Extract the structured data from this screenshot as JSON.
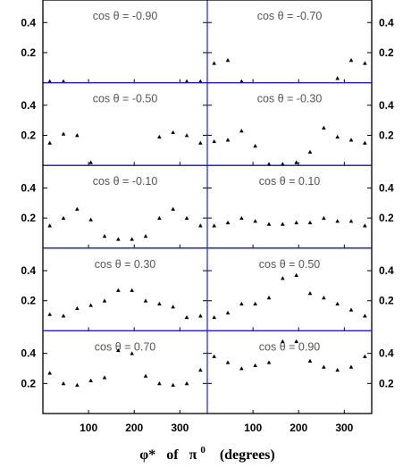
{
  "chart_data": {
    "type": "scatter",
    "layout": {
      "rows": 5,
      "cols": 2
    },
    "xlabel_parts": {
      "phi": "φ*",
      "of": "of",
      "pi": "π",
      "pi_sup": "0",
      "unit": "(degrees)"
    },
    "x_ticks": [
      "100",
      "200",
      "300"
    ],
    "y_ticks": [
      "0.2",
      "0.4"
    ],
    "xlim": [
      0,
      360
    ],
    "ylim": [
      0,
      0.55
    ],
    "x": [
      15,
      45,
      75,
      105,
      135,
      165,
      195,
      225,
      255,
      285,
      315,
      345
    ],
    "panels": [
      {
        "label": "cos θ = -0.90",
        "y": [
          0.01,
          0.01,
          null,
          null,
          null,
          null,
          null,
          null,
          null,
          null,
          0.01,
          0.01
        ]
      },
      {
        "label": "cos θ = -0.70",
        "y": [
          0.13,
          0.15,
          0.01,
          null,
          null,
          null,
          null,
          null,
          null,
          0.03,
          0.15,
          0.13
        ]
      },
      {
        "label": "cos θ = -0.50",
        "y": [
          0.15,
          0.21,
          0.2,
          0.02,
          null,
          null,
          null,
          null,
          0.19,
          0.22,
          0.2,
          0.15
        ]
      },
      {
        "label": "cos θ = -0.30",
        "y": [
          0.16,
          0.17,
          0.23,
          0.13,
          0.01,
          0.01,
          0.02,
          0.09,
          0.25,
          0.19,
          0.17,
          0.15
        ]
      },
      {
        "label": "cos θ = -0.10",
        "y": [
          0.15,
          0.2,
          0.26,
          0.19,
          0.08,
          0.06,
          0.06,
          0.08,
          0.2,
          0.26,
          0.2,
          0.15
        ]
      },
      {
        "label": "cos θ = 0.10",
        "y": [
          0.15,
          0.17,
          0.2,
          0.18,
          0.16,
          0.16,
          0.17,
          0.17,
          0.2,
          0.18,
          0.18,
          0.15
        ]
      },
      {
        "label": "cos θ = 0.30",
        "y": [
          0.11,
          0.1,
          0.15,
          0.17,
          0.2,
          0.27,
          0.27,
          0.2,
          0.18,
          0.16,
          0.09,
          0.1
        ]
      },
      {
        "label": "cos θ = 0.50",
        "y": [
          0.09,
          0.12,
          0.18,
          0.18,
          0.22,
          0.35,
          0.37,
          0.25,
          0.22,
          0.18,
          0.14,
          0.1
        ]
      },
      {
        "label": "cos θ = 0.70",
        "y": [
          0.27,
          0.2,
          0.19,
          0.22,
          0.24,
          0.42,
          0.4,
          0.25,
          0.2,
          0.19,
          0.2,
          0.29
        ]
      },
      {
        "label": "cos θ = 0.90",
        "y": [
          0.38,
          0.34,
          0.3,
          0.32,
          0.34,
          0.48,
          0.48,
          0.35,
          0.31,
          0.29,
          0.31,
          0.38
        ]
      }
    ]
  }
}
